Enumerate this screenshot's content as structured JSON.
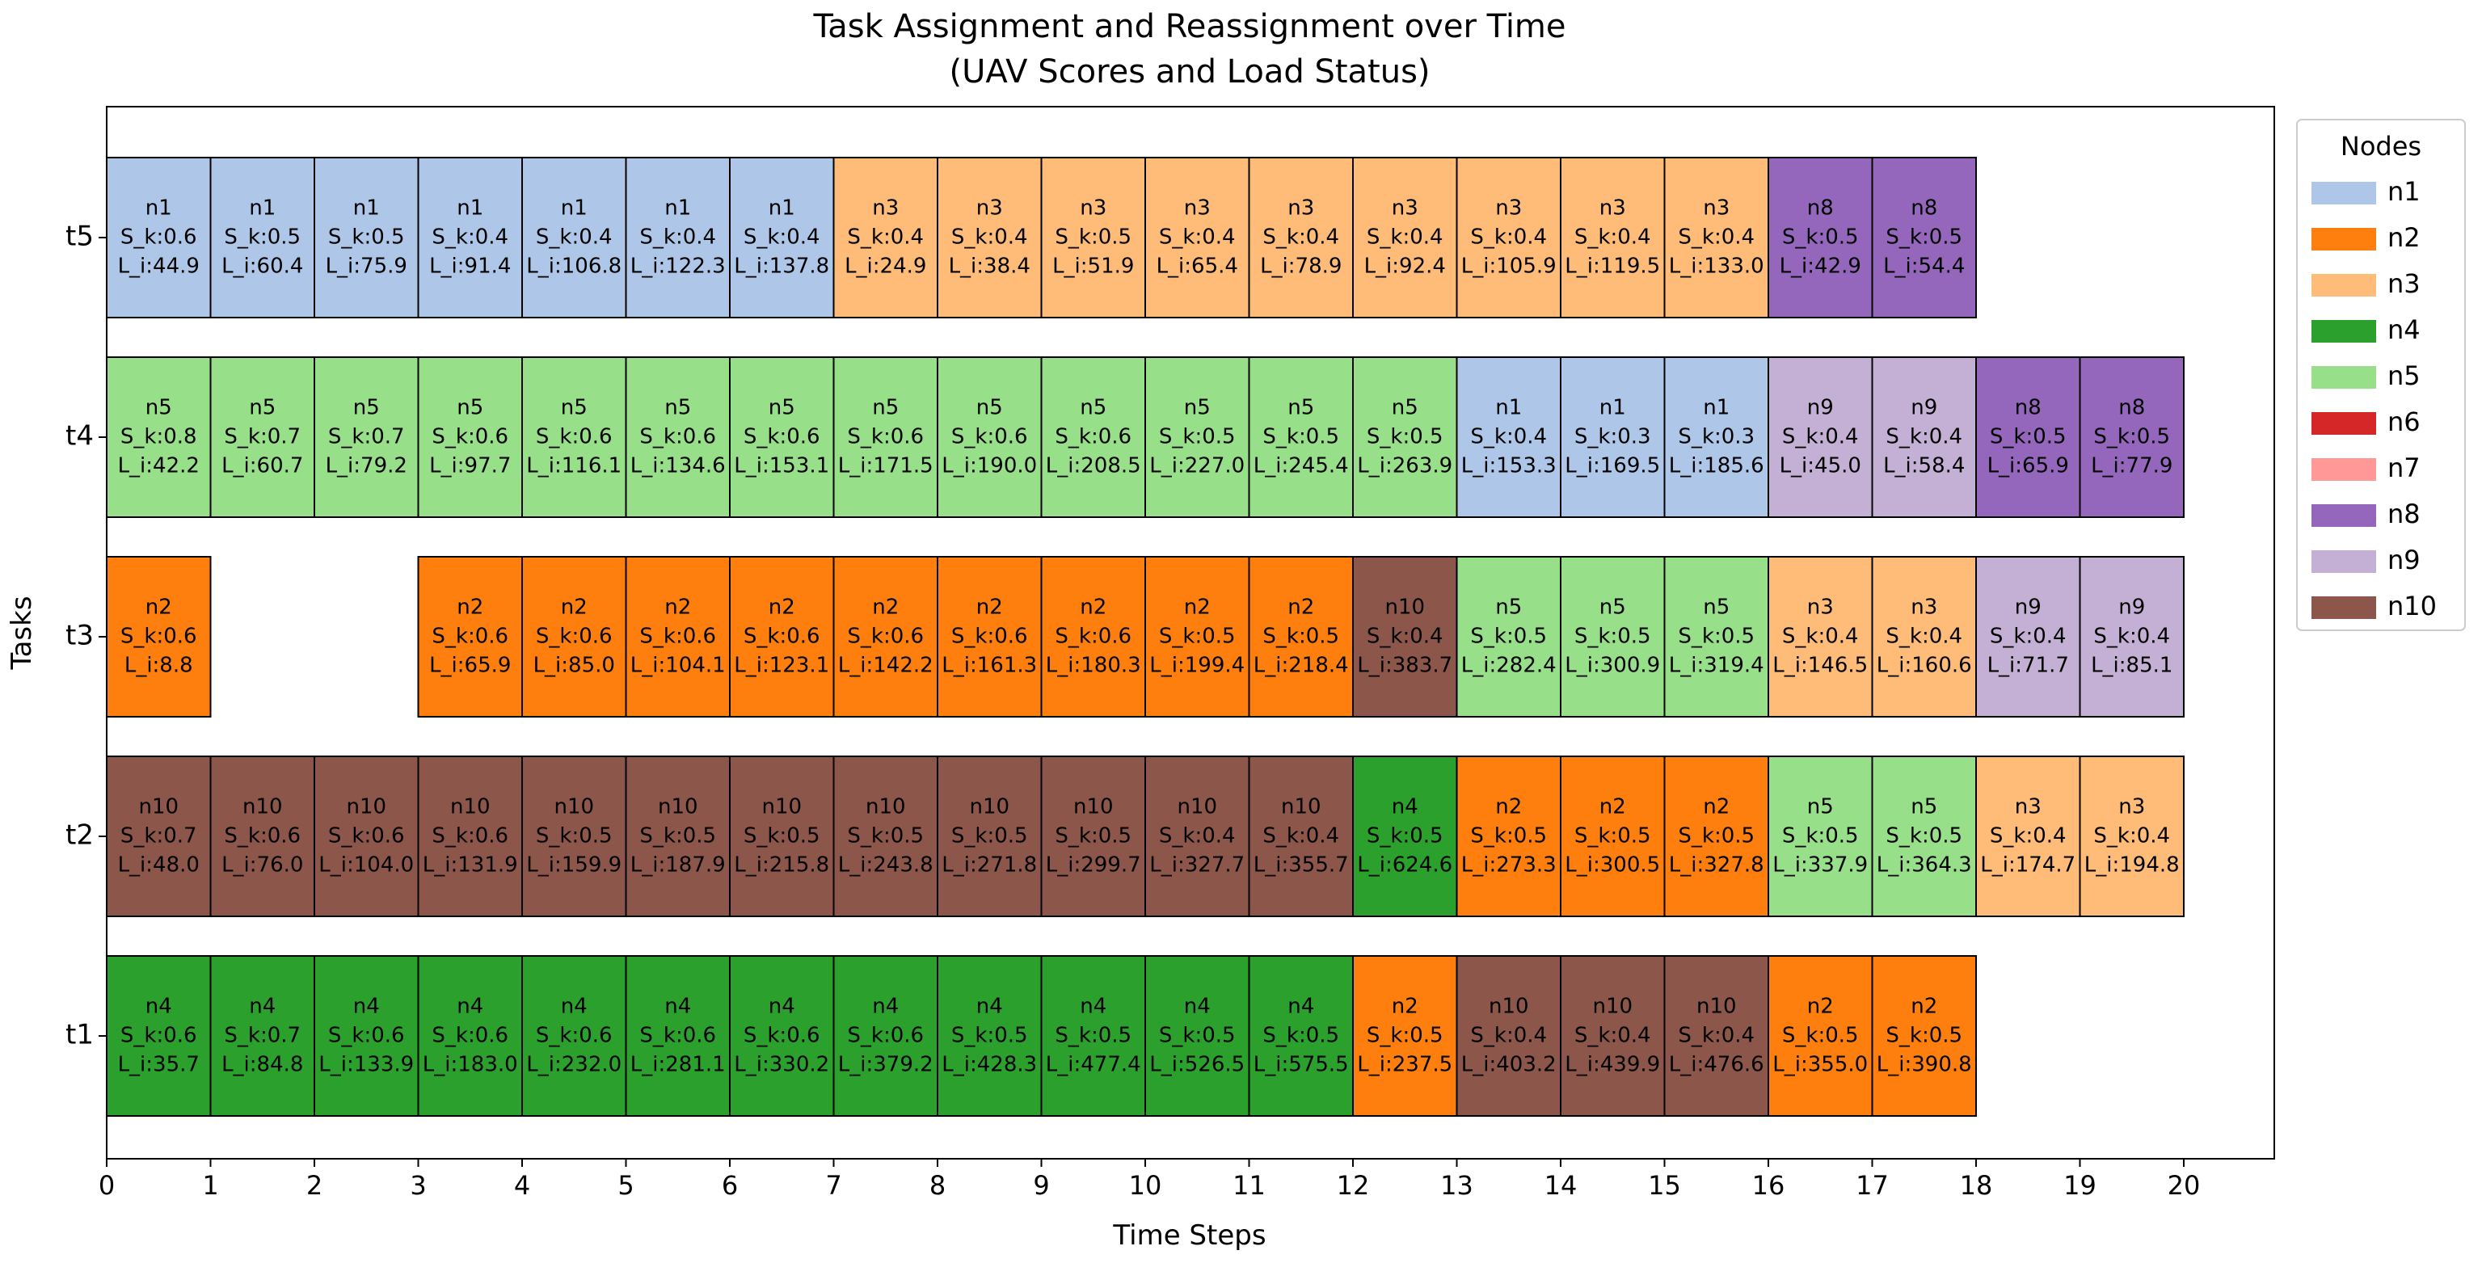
{
  "chart_data": {
    "type": "gantt",
    "title_lines": [
      "Task Assignment and Reassignment over Time",
      "(UAV Scores and Load Status)"
    ],
    "xlabel": "Time Steps",
    "ylabel": "Tasks",
    "xlim": [
      0,
      21
    ],
    "x_ticks": [
      0,
      1,
      2,
      3,
      4,
      5,
      6,
      7,
      8,
      9,
      10,
      11,
      12,
      13,
      14,
      15,
      16,
      17,
      18,
      19,
      20
    ],
    "tasks": [
      "t1",
      "t2",
      "t3",
      "t4",
      "t5"
    ],
    "legend": {
      "title": "Nodes",
      "position": "outside-right-top",
      "entries": [
        {
          "name": "n1",
          "color": "#aec7e8"
        },
        {
          "name": "n2",
          "color": "#ff7f0e"
        },
        {
          "name": "n3",
          "color": "#ffbb78"
        },
        {
          "name": "n4",
          "color": "#2ca02c"
        },
        {
          "name": "n5",
          "color": "#98df8a"
        },
        {
          "name": "n6",
          "color": "#d62728"
        },
        {
          "name": "n7",
          "color": "#ff9896"
        },
        {
          "name": "n8",
          "color": "#9467bd"
        },
        {
          "name": "n9",
          "color": "#c5b0d5"
        },
        {
          "name": "n10",
          "color": "#8c564b"
        }
      ]
    },
    "rows": [
      {
        "task": "t1",
        "segments": [
          {
            "start": 0,
            "node": "n4",
            "s_k": "S_k:0.6",
            "l_i": "L_i:35.7"
          },
          {
            "start": 1,
            "node": "n4",
            "s_k": "S_k:0.7",
            "l_i": "L_i:84.8"
          },
          {
            "start": 2,
            "node": "n4",
            "s_k": "S_k:0.6",
            "l_i": "L_i:133.9"
          },
          {
            "start": 3,
            "node": "n4",
            "s_k": "S_k:0.6",
            "l_i": "L_i:183.0"
          },
          {
            "start": 4,
            "node": "n4",
            "s_k": "S_k:0.6",
            "l_i": "L_i:232.0"
          },
          {
            "start": 5,
            "node": "n4",
            "s_k": "S_k:0.6",
            "l_i": "L_i:281.1"
          },
          {
            "start": 6,
            "node": "n4",
            "s_k": "S_k:0.6",
            "l_i": "L_i:330.2"
          },
          {
            "start": 7,
            "node": "n4",
            "s_k": "S_k:0.6",
            "l_i": "L_i:379.2"
          },
          {
            "start": 8,
            "node": "n4",
            "s_k": "S_k:0.5",
            "l_i": "L_i:428.3"
          },
          {
            "start": 9,
            "node": "n4",
            "s_k": "S_k:0.5",
            "l_i": "L_i:477.4"
          },
          {
            "start": 10,
            "node": "n4",
            "s_k": "S_k:0.5",
            "l_i": "L_i:526.5"
          },
          {
            "start": 11,
            "node": "n4",
            "s_k": "S_k:0.5",
            "l_i": "L_i:575.5"
          },
          {
            "start": 12,
            "node": "n2",
            "s_k": "S_k:0.5",
            "l_i": "L_i:237.5"
          },
          {
            "start": 13,
            "node": "n10",
            "s_k": "S_k:0.4",
            "l_i": "L_i:403.2"
          },
          {
            "start": 14,
            "node": "n10",
            "s_k": "S_k:0.4",
            "l_i": "L_i:439.9"
          },
          {
            "start": 15,
            "node": "n10",
            "s_k": "S_k:0.4",
            "l_i": "L_i:476.6"
          },
          {
            "start": 16,
            "node": "n2",
            "s_k": "S_k:0.5",
            "l_i": "L_i:355.0"
          },
          {
            "start": 17,
            "node": "n2",
            "s_k": "S_k:0.5",
            "l_i": "L_i:390.8"
          }
        ]
      },
      {
        "task": "t2",
        "segments": [
          {
            "start": 0,
            "node": "n10",
            "s_k": "S_k:0.7",
            "l_i": "L_i:48.0"
          },
          {
            "start": 1,
            "node": "n10",
            "s_k": "S_k:0.6",
            "l_i": "L_i:76.0"
          },
          {
            "start": 2,
            "node": "n10",
            "s_k": "S_k:0.6",
            "l_i": "L_i:104.0"
          },
          {
            "start": 3,
            "node": "n10",
            "s_k": "S_k:0.6",
            "l_i": "L_i:131.9"
          },
          {
            "start": 4,
            "node": "n10",
            "s_k": "S_k:0.5",
            "l_i": "L_i:159.9"
          },
          {
            "start": 5,
            "node": "n10",
            "s_k": "S_k:0.5",
            "l_i": "L_i:187.9"
          },
          {
            "start": 6,
            "node": "n10",
            "s_k": "S_k:0.5",
            "l_i": "L_i:215.8"
          },
          {
            "start": 7,
            "node": "n10",
            "s_k": "S_k:0.5",
            "l_i": "L_i:243.8"
          },
          {
            "start": 8,
            "node": "n10",
            "s_k": "S_k:0.5",
            "l_i": "L_i:271.8"
          },
          {
            "start": 9,
            "node": "n10",
            "s_k": "S_k:0.5",
            "l_i": "L_i:299.7"
          },
          {
            "start": 10,
            "node": "n10",
            "s_k": "S_k:0.4",
            "l_i": "L_i:327.7"
          },
          {
            "start": 11,
            "node": "n10",
            "s_k": "S_k:0.4",
            "l_i": "L_i:355.7"
          },
          {
            "start": 12,
            "node": "n4",
            "s_k": "S_k:0.5",
            "l_i": "L_i:624.6"
          },
          {
            "start": 13,
            "node": "n2",
            "s_k": "S_k:0.5",
            "l_i": "L_i:273.3"
          },
          {
            "start": 14,
            "node": "n2",
            "s_k": "S_k:0.5",
            "l_i": "L_i:300.5"
          },
          {
            "start": 15,
            "node": "n2",
            "s_k": "S_k:0.5",
            "l_i": "L_i:327.8"
          },
          {
            "start": 16,
            "node": "n5",
            "s_k": "S_k:0.5",
            "l_i": "L_i:337.9"
          },
          {
            "start": 17,
            "node": "n5",
            "s_k": "S_k:0.5",
            "l_i": "L_i:364.3"
          },
          {
            "start": 18,
            "node": "n3",
            "s_k": "S_k:0.4",
            "l_i": "L_i:174.7"
          },
          {
            "start": 19,
            "node": "n3",
            "s_k": "S_k:0.4",
            "l_i": "L_i:194.8"
          }
        ]
      },
      {
        "task": "t3",
        "segments": [
          {
            "start": 0,
            "node": "n2",
            "s_k": "S_k:0.6",
            "l_i": "L_i:8.8"
          },
          {
            "start": 3,
            "node": "n2",
            "s_k": "S_k:0.6",
            "l_i": "L_i:65.9"
          },
          {
            "start": 4,
            "node": "n2",
            "s_k": "S_k:0.6",
            "l_i": "L_i:85.0"
          },
          {
            "start": 5,
            "node": "n2",
            "s_k": "S_k:0.6",
            "l_i": "L_i:104.1"
          },
          {
            "start": 6,
            "node": "n2",
            "s_k": "S_k:0.6",
            "l_i": "L_i:123.1"
          },
          {
            "start": 7,
            "node": "n2",
            "s_k": "S_k:0.6",
            "l_i": "L_i:142.2"
          },
          {
            "start": 8,
            "node": "n2",
            "s_k": "S_k:0.6",
            "l_i": "L_i:161.3"
          },
          {
            "start": 9,
            "node": "n2",
            "s_k": "S_k:0.6",
            "l_i": "L_i:180.3"
          },
          {
            "start": 10,
            "node": "n2",
            "s_k": "S_k:0.5",
            "l_i": "L_i:199.4"
          },
          {
            "start": 11,
            "node": "n2",
            "s_k": "S_k:0.5",
            "l_i": "L_i:218.4"
          },
          {
            "start": 12,
            "node": "n10",
            "s_k": "S_k:0.4",
            "l_i": "L_i:383.7"
          },
          {
            "start": 13,
            "node": "n5",
            "s_k": "S_k:0.5",
            "l_i": "L_i:282.4"
          },
          {
            "start": 14,
            "node": "n5",
            "s_k": "S_k:0.5",
            "l_i": "L_i:300.9"
          },
          {
            "start": 15,
            "node": "n5",
            "s_k": "S_k:0.5",
            "l_i": "L_i:319.4"
          },
          {
            "start": 16,
            "node": "n3",
            "s_k": "S_k:0.4",
            "l_i": "L_i:146.5"
          },
          {
            "start": 17,
            "node": "n3",
            "s_k": "S_k:0.4",
            "l_i": "L_i:160.6"
          },
          {
            "start": 18,
            "node": "n9",
            "s_k": "S_k:0.4",
            "l_i": "L_i:71.7"
          },
          {
            "start": 19,
            "node": "n9",
            "s_k": "S_k:0.4",
            "l_i": "L_i:85.1"
          }
        ]
      },
      {
        "task": "t4",
        "segments": [
          {
            "start": 0,
            "node": "n5",
            "s_k": "S_k:0.8",
            "l_i": "L_i:42.2"
          },
          {
            "start": 1,
            "node": "n5",
            "s_k": "S_k:0.7",
            "l_i": "L_i:60.7"
          },
          {
            "start": 2,
            "node": "n5",
            "s_k": "S_k:0.7",
            "l_i": "L_i:79.2"
          },
          {
            "start": 3,
            "node": "n5",
            "s_k": "S_k:0.6",
            "l_i": "L_i:97.7"
          },
          {
            "start": 4,
            "node": "n5",
            "s_k": "S_k:0.6",
            "l_i": "L_i:116.1"
          },
          {
            "start": 5,
            "node": "n5",
            "s_k": "S_k:0.6",
            "l_i": "L_i:134.6"
          },
          {
            "start": 6,
            "node": "n5",
            "s_k": "S_k:0.6",
            "l_i": "L_i:153.1"
          },
          {
            "start": 7,
            "node": "n5",
            "s_k": "S_k:0.6",
            "l_i": "L_i:171.5"
          },
          {
            "start": 8,
            "node": "n5",
            "s_k": "S_k:0.6",
            "l_i": "L_i:190.0"
          },
          {
            "start": 9,
            "node": "n5",
            "s_k": "S_k:0.6",
            "l_i": "L_i:208.5"
          },
          {
            "start": 10,
            "node": "n5",
            "s_k": "S_k:0.5",
            "l_i": "L_i:227.0"
          },
          {
            "start": 11,
            "node": "n5",
            "s_k": "S_k:0.5",
            "l_i": "L_i:245.4"
          },
          {
            "start": 12,
            "node": "n5",
            "s_k": "S_k:0.5",
            "l_i": "L_i:263.9"
          },
          {
            "start": 13,
            "node": "n1",
            "s_k": "S_k:0.4",
            "l_i": "L_i:153.3"
          },
          {
            "start": 14,
            "node": "n1",
            "s_k": "S_k:0.3",
            "l_i": "L_i:169.5"
          },
          {
            "start": 15,
            "node": "n1",
            "s_k": "S_k:0.3",
            "l_i": "L_i:185.6"
          },
          {
            "start": 16,
            "node": "n9",
            "s_k": "S_k:0.4",
            "l_i": "L_i:45.0"
          },
          {
            "start": 17,
            "node": "n9",
            "s_k": "S_k:0.4",
            "l_i": "L_i:58.4"
          },
          {
            "start": 18,
            "node": "n8",
            "s_k": "S_k:0.5",
            "l_i": "L_i:65.9"
          },
          {
            "start": 19,
            "node": "n8",
            "s_k": "S_k:0.5",
            "l_i": "L_i:77.9"
          }
        ]
      },
      {
        "task": "t5",
        "segments": [
          {
            "start": 0,
            "node": "n1",
            "s_k": "S_k:0.6",
            "l_i": "L_i:44.9"
          },
          {
            "start": 1,
            "node": "n1",
            "s_k": "S_k:0.5",
            "l_i": "L_i:60.4"
          },
          {
            "start": 2,
            "node": "n1",
            "s_k": "S_k:0.5",
            "l_i": "L_i:75.9"
          },
          {
            "start": 3,
            "node": "n1",
            "s_k": "S_k:0.4",
            "l_i": "L_i:91.4"
          },
          {
            "start": 4,
            "node": "n1",
            "s_k": "S_k:0.4",
            "l_i": "L_i:106.8"
          },
          {
            "start": 5,
            "node": "n1",
            "s_k": "S_k:0.4",
            "l_i": "L_i:122.3"
          },
          {
            "start": 6,
            "node": "n1",
            "s_k": "S_k:0.4",
            "l_i": "L_i:137.8"
          },
          {
            "start": 7,
            "node": "n3",
            "s_k": "S_k:0.4",
            "l_i": "L_i:24.9"
          },
          {
            "start": 8,
            "node": "n3",
            "s_k": "S_k:0.4",
            "l_i": "L_i:38.4"
          },
          {
            "start": 9,
            "node": "n3",
            "s_k": "S_k:0.5",
            "l_i": "L_i:51.9"
          },
          {
            "start": 10,
            "node": "n3",
            "s_k": "S_k:0.4",
            "l_i": "L_i:65.4"
          },
          {
            "start": 11,
            "node": "n3",
            "s_k": "S_k:0.4",
            "l_i": "L_i:78.9"
          },
          {
            "start": 12,
            "node": "n3",
            "s_k": "S_k:0.4",
            "l_i": "L_i:92.4"
          },
          {
            "start": 13,
            "node": "n3",
            "s_k": "S_k:0.4",
            "l_i": "L_i:105.9"
          },
          {
            "start": 14,
            "node": "n3",
            "s_k": "S_k:0.4",
            "l_i": "L_i:119.5"
          },
          {
            "start": 15,
            "node": "n3",
            "s_k": "S_k:0.4",
            "l_i": "L_i:133.0"
          },
          {
            "start": 16,
            "node": "n8",
            "s_k": "S_k:0.5",
            "l_i": "L_i:42.9"
          },
          {
            "start": 17,
            "node": "n8",
            "s_k": "S_k:0.5",
            "l_i": "L_i:54.4"
          }
        ]
      }
    ]
  }
}
